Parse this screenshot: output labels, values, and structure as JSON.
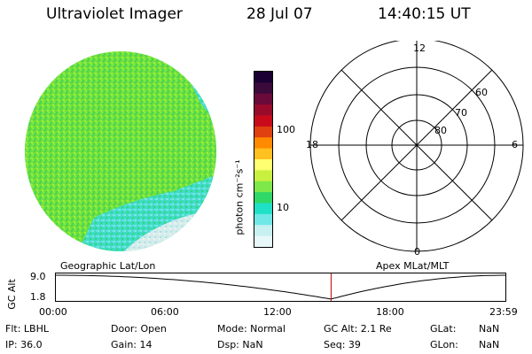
{
  "header": {
    "title": "Ultraviolet Imager",
    "date": "28 Jul 07",
    "time": "14:40:15 UT"
  },
  "colorbar": {
    "unit_label": "photon cm⁻²s⁻¹",
    "tick_labels": [
      "100",
      "10"
    ],
    "colors": [
      "#1a0033",
      "#3a0a3a",
      "#6a0a3a",
      "#9a0a2a",
      "#c80a1a",
      "#e04010",
      "#ff8a00",
      "#ffc020",
      "#ffff70",
      "#c8f040",
      "#7ee84a",
      "#30d868",
      "#20e0c8",
      "#70e8e8",
      "#c8f0f0",
      "#e8f8f8"
    ]
  },
  "polar_plot": {
    "mlt_labels": {
      "top": "12",
      "left": "18",
      "right": "6",
      "bottom": "0"
    },
    "lat_labels": [
      "60",
      "70",
      "80"
    ]
  },
  "timeline": {
    "left_title": "Geographic Lat/Lon",
    "right_title": "Apex MLat/MLT",
    "axis_label": "GC Alt",
    "y_ticks": [
      "9.0",
      "1.8"
    ],
    "x_ticks": [
      "00:00",
      "06:00",
      "12:00",
      "18:00",
      "23:59"
    ],
    "current_time_fraction": 0.611
  },
  "status": {
    "flt": "Flt: LBHL",
    "ip": "IP: 36.0",
    "door": "Door: Open",
    "gain": "Gain: 14",
    "mode": "Mode: Normal",
    "dsp": "Dsp: NaN",
    "gc_alt": "GC Alt: 2.1 Re",
    "seq": "Seq: 39",
    "glat_label": "GLat:",
    "glat_value": "NaN",
    "glon_label": "GLon:",
    "glon_value": "NaN"
  }
}
